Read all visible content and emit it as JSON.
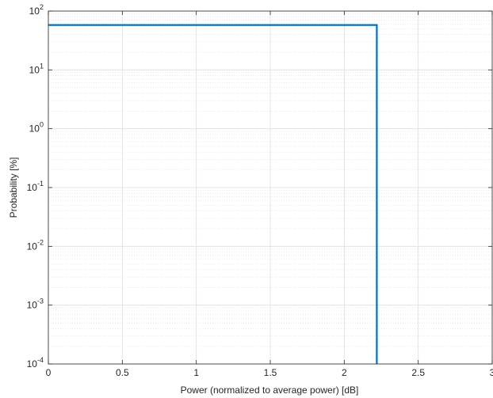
{
  "chart_data": {
    "type": "line",
    "title": "",
    "xlabel": "Power (normalized to average power) [dB]",
    "ylabel": "Probability [%]",
    "x_scale": "linear",
    "y_scale": "log",
    "xlim": [
      0,
      3
    ],
    "ylim": [
      0.0001,
      100
    ],
    "x_ticks": [
      0,
      0.5,
      1,
      1.5,
      2,
      2.5,
      3
    ],
    "x_tick_labels": [
      "0",
      "0.5",
      "1",
      "1.5",
      "2",
      "2.5",
      "3"
    ],
    "y_tick_exponents": [
      -4,
      -3,
      -2,
      -1,
      0,
      1,
      2
    ],
    "y_tick_base": "10",
    "grid": true,
    "minor_grid_y": true,
    "legend": "none",
    "series": [
      {
        "color": "#0072BD",
        "x": [
          0,
          2.22,
          2.22
        ],
        "y": [
          58,
          58,
          0.0001
        ]
      }
    ]
  }
}
